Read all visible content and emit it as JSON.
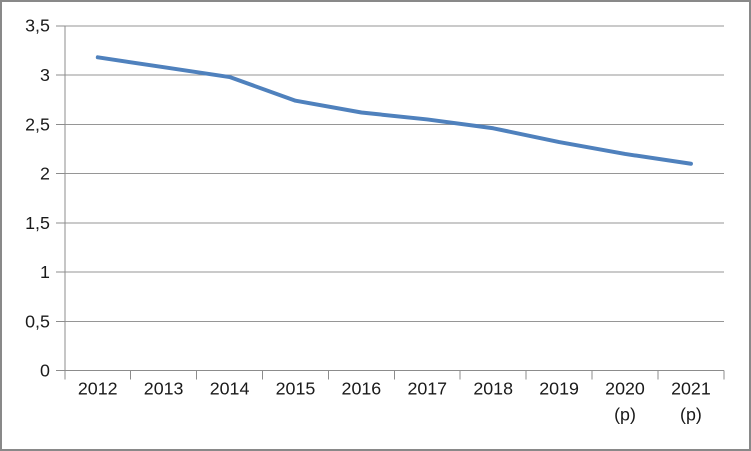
{
  "chart_data": {
    "type": "line",
    "title": "",
    "categories": [
      "2012",
      "2013",
      "2014",
      "2015",
      "2016",
      "2017",
      "2018",
      "2019",
      "2020",
      "2021"
    ],
    "category_notes": [
      "",
      "",
      "",
      "",
      "",
      "",
      "",
      "",
      "(p)",
      "(p)"
    ],
    "series": [
      {
        "name": "",
        "values": [
          3.18,
          3.08,
          2.98,
          2.74,
          2.62,
          2.55,
          2.46,
          2.32,
          2.2,
          2.1
        ]
      }
    ],
    "xlabel": "",
    "ylabel": "",
    "ylim": [
      0,
      3.5
    ],
    "ytick_step": 0.5,
    "ytick_labels": [
      "0",
      "0,5",
      "1",
      "1,5",
      "2",
      "2,5",
      "3",
      "3,5"
    ],
    "grid": true,
    "legend_position": "none",
    "colors": {
      "line": "#4f81bd",
      "grid": "#969696",
      "axis": "#8c8c8c",
      "text": "#1a1a1a",
      "background": "#ffffff",
      "frame_border": "#898989"
    }
  }
}
